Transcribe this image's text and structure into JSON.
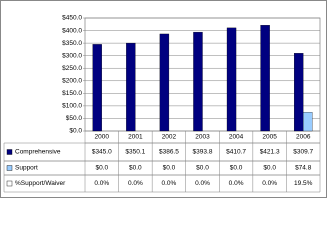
{
  "chart_data": {
    "type": "bar",
    "categories": [
      "2000",
      "2001",
      "2002",
      "2003",
      "2004",
      "2005",
      "2006"
    ],
    "series": [
      {
        "name": "Comprehensive",
        "color": "#000080",
        "values": [
          345.0,
          350.1,
          386.5,
          393.8,
          410.7,
          421.3,
          309.7
        ],
        "value_labels": [
          "$345.0",
          "$350.1",
          "$386.5",
          "$393.8",
          "$410.7",
          "$421.3",
          "$309.7"
        ]
      },
      {
        "name": "Support",
        "color": "#99ccff",
        "values": [
          0,
          0,
          0,
          0,
          0,
          0,
          74.8
        ],
        "value_labels": [
          "$0.0",
          "$0.0",
          "$0.0",
          "$0.0",
          "$0.0",
          "$0.0",
          "$74.8"
        ]
      }
    ],
    "table_rows": [
      {
        "name": "%Support/Waiver",
        "color": "#ffffff",
        "values": [
          0,
          0,
          0,
          0,
          0,
          0,
          19.5
        ],
        "value_labels": [
          "0.0%",
          "0.0%",
          "0.0%",
          "0.0%",
          "0.0%",
          "0.0%",
          "19.5%"
        ]
      }
    ],
    "ylim": [
      0,
      450
    ],
    "yticks": [
      {
        "value": 0,
        "label": "$0.0"
      },
      {
        "value": 50,
        "label": "$50.0"
      },
      {
        "value": 100,
        "label": "$100.0"
      },
      {
        "value": 150,
        "label": "$150.0"
      },
      {
        "value": 200,
        "label": "$200.0"
      },
      {
        "value": 250,
        "label": "$250.0"
      },
      {
        "value": 300,
        "label": "$300.0"
      },
      {
        "value": 350,
        "label": "$350.0"
      },
      {
        "value": 400,
        "label": "$400.0"
      },
      {
        "value": 450,
        "label": "$450.0"
      }
    ],
    "grid": true
  }
}
